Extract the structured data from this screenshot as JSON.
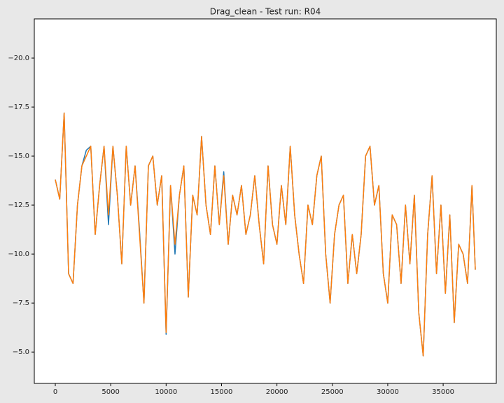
{
  "chart_data": {
    "type": "line",
    "title": "Drag_clean - Test run: R04",
    "x": [
      0,
      400,
      800,
      1200,
      1600,
      2000,
      2400,
      2800,
      3200,
      3600,
      4000,
      4400,
      4800,
      5200,
      5600,
      6000,
      6400,
      6800,
      7200,
      7600,
      8000,
      8400,
      8800,
      9200,
      9600,
      10000,
      10400,
      10800,
      11200,
      11600,
      12000,
      12400,
      12800,
      13200,
      13600,
      14000,
      14400,
      14800,
      15200,
      15600,
      16000,
      16400,
      16800,
      17200,
      17600,
      18000,
      18400,
      18800,
      19200,
      19600,
      20000,
      20400,
      20800,
      21200,
      21600,
      22000,
      22400,
      22800,
      23200,
      23600,
      24000,
      24400,
      24800,
      25200,
      25600,
      26000,
      26400,
      26800,
      27200,
      27600,
      28000,
      28400,
      28800,
      29200,
      29600,
      30000,
      30400,
      30800,
      31200,
      31600,
      32000,
      32400,
      32800,
      33200,
      33600,
      34000,
      34400,
      34800,
      35200,
      35600,
      36000,
      36400,
      36800,
      37200,
      37600,
      37900
    ],
    "series": [
      {
        "color": "#1f77b4",
        "values": [
          -13.8,
          -12.8,
          -17.2,
          -9.0,
          -8.5,
          -12.5,
          -14.5,
          -15.3,
          -15.5,
          -11.0,
          -13.5,
          -15.5,
          -11.5,
          -15.5,
          -13.0,
          -9.5,
          -15.5,
          -12.5,
          -14.5,
          -11.2,
          -7.5,
          -14.5,
          -15.0,
          -12.5,
          -14.0,
          -5.9,
          -13.5,
          -10.0,
          -13.0,
          -14.5,
          -7.8,
          -13.0,
          -12.0,
          -16.0,
          -12.5,
          -11.0,
          -14.5,
          -11.5,
          -14.2,
          -10.5,
          -13.0,
          -12.0,
          -13.5,
          -11.0,
          -12.0,
          -14.0,
          -11.5,
          -9.5,
          -14.5,
          -11.5,
          -10.5,
          -13.5,
          -11.5,
          -15.5,
          -12.0,
          -10.0,
          -8.5,
          -12.5,
          -11.5,
          -14.0,
          -15.0,
          -10.0,
          -7.5,
          -11.0,
          -12.5,
          -13.0,
          -8.5,
          -11.0,
          -9.0,
          -11.0,
          -15.0,
          -15.5,
          -12.5,
          -13.5,
          -9.0,
          -7.5,
          -12.0,
          -11.5,
          -8.5,
          -12.5,
          -9.5,
          -13.0,
          -7.0,
          -4.8,
          -11.0,
          -14.0,
          -9.0,
          -12.5,
          -8.0,
          -12.0,
          -6.5,
          -10.5,
          -10.0,
          -8.5,
          -13.5,
          -9.2
        ]
      },
      {
        "color": "#ff7f0e",
        "values": [
          -13.8,
          -12.8,
          -17.2,
          -9.0,
          -8.5,
          -12.5,
          -14.5,
          -15.0,
          -15.5,
          -11.0,
          -13.5,
          -15.5,
          -12.0,
          -15.5,
          -13.0,
          -9.5,
          -15.5,
          -12.5,
          -14.5,
          -11.0,
          -7.5,
          -14.5,
          -15.0,
          -12.5,
          -14.0,
          -6.0,
          -13.5,
          -10.5,
          -13.0,
          -14.5,
          -7.8,
          -13.0,
          -12.0,
          -16.0,
          -12.5,
          -11.0,
          -14.5,
          -11.5,
          -14.0,
          -10.5,
          -13.0,
          -12.0,
          -13.5,
          -11.0,
          -12.0,
          -14.0,
          -11.5,
          -9.5,
          -14.5,
          -11.5,
          -10.5,
          -13.5,
          -11.5,
          -15.5,
          -12.0,
          -10.0,
          -8.5,
          -12.5,
          -11.5,
          -14.0,
          -15.0,
          -10.0,
          -7.5,
          -11.0,
          -12.5,
          -13.0,
          -8.5,
          -11.0,
          -9.0,
          -11.0,
          -15.0,
          -15.5,
          -12.5,
          -13.5,
          -9.0,
          -7.5,
          -12.0,
          -11.5,
          -8.5,
          -12.5,
          -9.5,
          -13.0,
          -7.0,
          -4.8,
          -11.0,
          -14.0,
          -9.0,
          -12.5,
          -8.0,
          -12.0,
          -6.5,
          -10.5,
          -10.0,
          -8.5,
          -13.5,
          -9.2
        ]
      }
    ],
    "xlim": [
      -1895,
      39795
    ],
    "ylim": [
      -3.4,
      -22.0
    ],
    "xticks": [
      0,
      5000,
      10000,
      15000,
      20000,
      25000,
      30000,
      35000
    ],
    "yticks": [
      {
        "value": -5.0,
        "label": "−5.0"
      },
      {
        "value": -7.5,
        "label": "−7.5"
      },
      {
        "value": -10.0,
        "label": "−10.0"
      },
      {
        "value": -12.5,
        "label": "−12.5"
      },
      {
        "value": -15.0,
        "label": "−15.0"
      },
      {
        "value": -17.5,
        "label": "−17.5"
      },
      {
        "value": -20.0,
        "label": "−20.0"
      }
    ]
  }
}
